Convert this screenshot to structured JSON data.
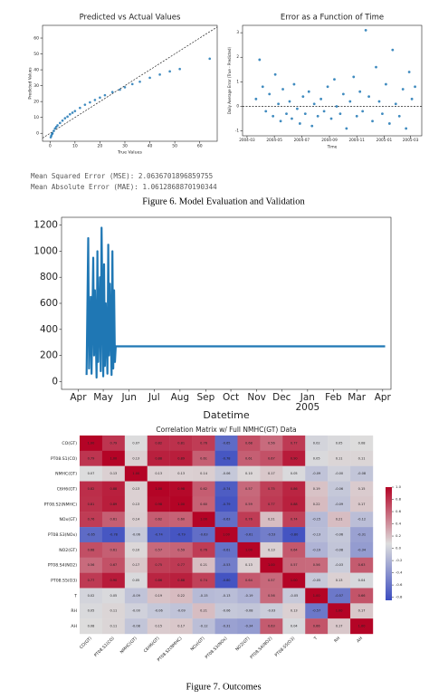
{
  "chart_data": [
    {
      "type": "scatter",
      "title": "Predicted vs Actual Values",
      "x_label": "True Values",
      "y_label": "Predicted Values",
      "color": "#1f77b4",
      "diagonal": true,
      "x": [
        0.3,
        0.5,
        0.8,
        1,
        1.5,
        2,
        2.5,
        3,
        4,
        5,
        6,
        7,
        8,
        9,
        10,
        12,
        14,
        16,
        18,
        20,
        22,
        25,
        28,
        30,
        33,
        36,
        40,
        44,
        48,
        52,
        64
      ],
      "y": [
        -2.5,
        -1.5,
        -0.5,
        0,
        1.5,
        3,
        4,
        5,
        6.5,
        8,
        9.5,
        10.5,
        12,
        13,
        14,
        16,
        18,
        19.5,
        21,
        22.5,
        24,
        26,
        27.5,
        29,
        31,
        32.5,
        35,
        37,
        39,
        40.5,
        47
      ],
      "xlim": [
        -3,
        67
      ],
      "ylim": [
        -5,
        68
      ],
      "xticks": [
        0,
        10,
        20,
        30,
        40,
        50,
        60
      ],
      "yticks": [
        0,
        10,
        20,
        30,
        40,
        50,
        60
      ]
    },
    {
      "type": "scatter",
      "title": "Error as a Function of Time",
      "x_label": "Time",
      "y_label": "Daily Average Error (True - Predicted)",
      "color": "#1f77b4",
      "hline": 0,
      "x": [
        20,
        28,
        35,
        42,
        50,
        58,
        63,
        70,
        75,
        80,
        88,
        95,
        100,
        105,
        112,
        118,
        125,
        130,
        138,
        145,
        150,
        158,
        165,
        172,
        180,
        188,
        195,
        200,
        208,
        215,
        222,
        230,
        238,
        245,
        252,
        258,
        265,
        272,
        280,
        288,
        295,
        302,
        310,
        318,
        325,
        332,
        340,
        348,
        355,
        362,
        368,
        375
      ],
      "y": [
        0.3,
        1.9,
        0.8,
        -0.2,
        0.5,
        -0.4,
        1.3,
        0.1,
        -0.6,
        0.7,
        -0.3,
        0.2,
        -0.5,
        0.9,
        -0.1,
        -0.7,
        0.4,
        -0.3,
        0.6,
        -0.8,
        0.1,
        -0.4,
        0.3,
        -0.2,
        0.8,
        -0.5,
        1.1,
        0,
        -0.3,
        0.5,
        -0.9,
        0.2,
        1.2,
        -0.4,
        0.6,
        -0.2,
        3.1,
        0.4,
        -0.6,
        1.6,
        0.2,
        -0.3,
        0.9,
        -0.7,
        2.3,
        0.1,
        -0.4,
        0.7,
        -0.9,
        1.4,
        0.3,
        0.8
      ],
      "xlim": [
        -10,
        390
      ],
      "ylim": [
        -1.2,
        3.3
      ],
      "xticks": [
        {
          "value": 0,
          "label": "2004-03"
        },
        {
          "value": 61,
          "label": "2004-05"
        },
        {
          "value": 122,
          "label": "2004-07"
        },
        {
          "value": 184,
          "label": "2004-09"
        },
        {
          "value": 245,
          "label": "2004-11"
        },
        {
          "value": 306,
          "label": "2005-01"
        },
        {
          "value": 365,
          "label": "2005-03"
        }
      ],
      "yticks": [
        -1,
        0,
        1,
        2,
        3
      ]
    },
    {
      "type": "line",
      "x_label": "Datetime",
      "color": "#1f77b4",
      "x": [
        10,
        12,
        13,
        15,
        16,
        18,
        19,
        20,
        22,
        23,
        24,
        26,
        27,
        28,
        30,
        31,
        32,
        33,
        35,
        36,
        37,
        38,
        40,
        41,
        42,
        43,
        44,
        45,
        46,
        368
      ],
      "y": [
        50,
        1100,
        100,
        650,
        60,
        950,
        200,
        700,
        30,
        1000,
        150,
        800,
        80,
        1180,
        40,
        900,
        120,
        600,
        60,
        1050,
        200,
        750,
        50,
        1000,
        100,
        700,
        150,
        270,
        270,
        270
      ],
      "xlim": [
        -20,
        375
      ],
      "ylim": [
        -60,
        1260
      ],
      "xticks": [
        {
          "value": 0,
          "label": "Apr"
        },
        {
          "value": 30,
          "label": "May"
        },
        {
          "value": 61,
          "label": "Jun"
        },
        {
          "value": 91,
          "label": "Jul"
        },
        {
          "value": 122,
          "label": "Aug"
        },
        {
          "value": 153,
          "label": "Sep"
        },
        {
          "value": 183,
          "label": "Oct"
        },
        {
          "value": 214,
          "label": "Nov"
        },
        {
          "value": 244,
          "label": "Dec"
        },
        {
          "value": 275,
          "label": "Jan"
        },
        {
          "value": 306,
          "label": "Feb"
        },
        {
          "value": 334,
          "label": "Mar"
        },
        {
          "value": 365,
          "label": "Apr"
        }
      ],
      "yticks": [
        0,
        200,
        400,
        600,
        800,
        1000,
        1200
      ],
      "annotations": [
        {
          "text": "2005",
          "x": 275
        }
      ]
    },
    {
      "type": "heatmap",
      "title": "Correlation Matrix w/ Full NMHC(GT) Data",
      "categories": [
        "CO(GT)",
        "PT08.S1(CO)",
        "NMHC(GT)",
        "C6H6(GT)",
        "PT08.S2(NMHC)",
        "NOx(GT)",
        "PT08.S3(NOx)",
        "NO2(GT)",
        "PT08.S4(NO2)",
        "PT08.S5(O3)",
        "T",
        "RH",
        "AH"
      ],
      "values": [
        [
          1,
          0.79,
          0.07,
          0.82,
          0.81,
          0.76,
          -0.65,
          0.68,
          0.56,
          0.77,
          0.02,
          0.05,
          0.08
        ],
        [
          0.79,
          1,
          0.13,
          0.88,
          0.89,
          0.61,
          -0.78,
          0.61,
          0.67,
          0.9,
          0.05,
          0.11,
          0.11
        ],
        [
          0.07,
          0.13,
          1,
          0.13,
          0.13,
          0.14,
          -0.06,
          0.1,
          0.17,
          0.05,
          -0.09,
          -0.0,
          -0.08
        ],
        [
          0.82,
          0.88,
          0.13,
          1,
          0.98,
          0.62,
          -0.74,
          0.57,
          0.75,
          0.86,
          0.19,
          -0.06,
          0.15
        ],
        [
          0.81,
          0.89,
          0.13,
          0.98,
          1,
          0.6,
          -0.79,
          0.59,
          0.77,
          0.88,
          0.22,
          -0.09,
          0.17
        ],
        [
          0.76,
          0.61,
          0.14,
          0.62,
          0.6,
          1,
          -0.63,
          0.76,
          0.21,
          0.74,
          -0.15,
          0.21,
          -0.12
        ],
        [
          -0.65,
          -0.78,
          -0.06,
          -0.74,
          -0.79,
          -0.63,
          1,
          -0.61,
          -0.53,
          -0.8,
          -0.13,
          -0.06,
          -0.31
        ],
        [
          0.68,
          0.61,
          0.1,
          0.57,
          0.59,
          0.76,
          -0.61,
          1,
          0.13,
          0.64,
          -0.19,
          -0.08,
          -0.34
        ],
        [
          0.56,
          0.67,
          0.17,
          0.75,
          0.77,
          0.21,
          -0.53,
          0.13,
          1,
          0.57,
          0.56,
          -0.03,
          0.63
        ],
        [
          0.77,
          0.9,
          0.05,
          0.86,
          0.88,
          0.74,
          -0.8,
          0.64,
          0.57,
          1,
          -0.05,
          0.13,
          0.04
        ],
        [
          0.02,
          0.05,
          -0.09,
          0.19,
          0.22,
          -0.15,
          -0.13,
          -0.19,
          0.56,
          -0.05,
          1,
          -0.57,
          0.66
        ],
        [
          0.05,
          0.11,
          -0.0,
          -0.06,
          -0.09,
          0.21,
          -0.06,
          -0.08,
          -0.03,
          0.13,
          -0.57,
          1,
          0.17
        ],
        [
          0.08,
          0.11,
          -0.08,
          0.15,
          0.17,
          -0.12,
          -0.31,
          -0.34,
          0.63,
          0.04,
          0.66,
          0.17,
          1
        ]
      ],
      "value_labels": [
        [
          "1.00",
          "0.79",
          "0.07",
          "0.82",
          "0.81",
          "0.76",
          "-0.65",
          "0.68",
          "0.56",
          "0.77",
          "0.02",
          "0.05",
          "0.08"
        ],
        [
          "0.79",
          "1.00",
          "0.13",
          "0.88",
          "0.89",
          "0.61",
          "-0.78",
          "0.61",
          "0.67",
          "0.90",
          "0.05",
          "0.11",
          "0.11"
        ],
        [
          "0.07",
          "0.13",
          "1.00",
          "0.13",
          "0.13",
          "0.14",
          "-0.06",
          "0.10",
          "0.17",
          "0.05",
          "-0.09",
          "-0.00",
          "-0.08"
        ],
        [
          "0.82",
          "0.88",
          "0.13",
          "1.00",
          "0.98",
          "0.62",
          "-0.74",
          "0.57",
          "0.75",
          "0.86",
          "0.19",
          "-0.06",
          "0.15"
        ],
        [
          "0.81",
          "0.89",
          "0.13",
          "0.98",
          "1.00",
          "0.60",
          "-0.79",
          "0.59",
          "0.77",
          "0.88",
          "0.22",
          "-0.09",
          "0.17"
        ],
        [
          "0.76",
          "0.61",
          "0.14",
          "0.62",
          "0.60",
          "1.00",
          "-0.63",
          "0.76",
          "0.21",
          "0.74",
          "-0.15",
          "0.21",
          "-0.12"
        ],
        [
          "-0.65",
          "-0.78",
          "-0.06",
          "-0.74",
          "-0.79",
          "-0.63",
          "1.00",
          "-0.61",
          "-0.53",
          "-0.80",
          "-0.13",
          "-0.06",
          "-0.31"
        ],
        [
          "0.68",
          "0.61",
          "0.10",
          "0.57",
          "0.59",
          "0.76",
          "-0.61",
          "1.00",
          "0.13",
          "0.64",
          "-0.19",
          "-0.08",
          "-0.34"
        ],
        [
          "0.56",
          "0.67",
          "0.17",
          "0.75",
          "0.77",
          "0.21",
          "-0.53",
          "0.13",
          "1.00",
          "0.57",
          "0.56",
          "-0.03",
          "0.63"
        ],
        [
          "0.77",
          "0.90",
          "0.05",
          "0.86",
          "0.88",
          "0.74",
          "-0.80",
          "0.64",
          "0.57",
          "1.00",
          "-0.05",
          "0.13",
          "0.04"
        ],
        [
          "0.02",
          "0.05",
          "-0.09",
          "0.19",
          "0.22",
          "-0.15",
          "-0.13",
          "-0.19",
          "0.56",
          "-0.05",
          "1.00",
          "-0.57",
          "0.66"
        ],
        [
          "0.05",
          "0.11",
          "-0.00",
          "-0.06",
          "-0.09",
          "0.21",
          "-0.06",
          "-0.08",
          "-0.03",
          "0.13",
          "-0.57",
          "1.00",
          "0.17"
        ],
        [
          "0.08",
          "0.11",
          "-0.08",
          "0.15",
          "0.17",
          "-0.12",
          "-0.31",
          "-0.34",
          "0.63",
          "0.04",
          "0.66",
          "0.17",
          "1.00"
        ]
      ],
      "zlim": [
        -0.85,
        1.0
      ],
      "zticks": [
        {
          "value": 1,
          "label": "1.0"
        },
        0.8,
        0.6,
        0.4,
        0.2,
        {
          "value": 0,
          "label": "0.0"
        },
        -0.2,
        -0.4,
        -0.6,
        -0.8
      ],
      "colors": [
        "#3b4cc0",
        "#dddddd",
        "#b40426"
      ]
    }
  ],
  "metrics": [
    "Mean Squared Error (MSE): 2.0636701896859755",
    "Mean Absolute Error (MAE): 1.0612868870190344"
  ],
  "captions": [
    "Figure 6. Model Evaluation and Validation",
    "Figure 7. Outcomes"
  ]
}
